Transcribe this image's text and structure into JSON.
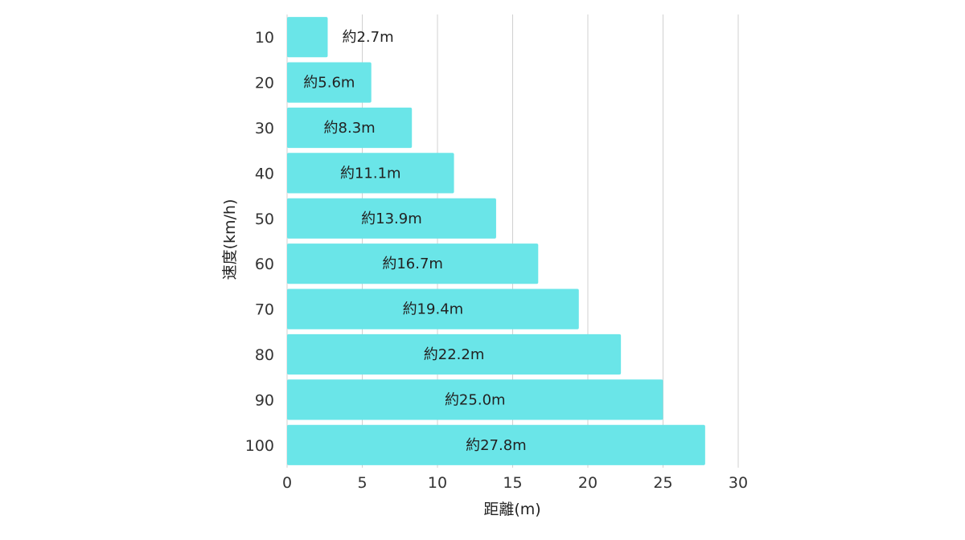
{
  "chart_data": {
    "type": "bar",
    "orientation": "horizontal",
    "categories": [
      "10",
      "20",
      "30",
      "40",
      "50",
      "60",
      "70",
      "80",
      "90",
      "100"
    ],
    "values": [
      2.7,
      5.6,
      8.3,
      11.1,
      13.9,
      16.7,
      19.4,
      22.2,
      25.0,
      27.8
    ],
    "data_labels": [
      "約2.7m",
      "約5.6m",
      "約8.3m",
      "約11.1m",
      "約13.9m",
      "約16.7m",
      "約19.4m",
      "約22.2m",
      "約25.0m",
      "約27.8m"
    ],
    "title": "",
    "xlabel": "距離(m)",
    "ylabel": "速度(km/h)",
    "xlim": [
      0,
      30
    ],
    "x_ticks": [
      0,
      5,
      10,
      15,
      20,
      25,
      30
    ],
    "x_tick_labels": [
      "0",
      "5",
      "10",
      "15",
      "20",
      "25",
      "30"
    ],
    "grid": "vertical",
    "legend": "none",
    "bar_color": "#6ae5e8",
    "grid_color": "#d0d0d0"
  }
}
